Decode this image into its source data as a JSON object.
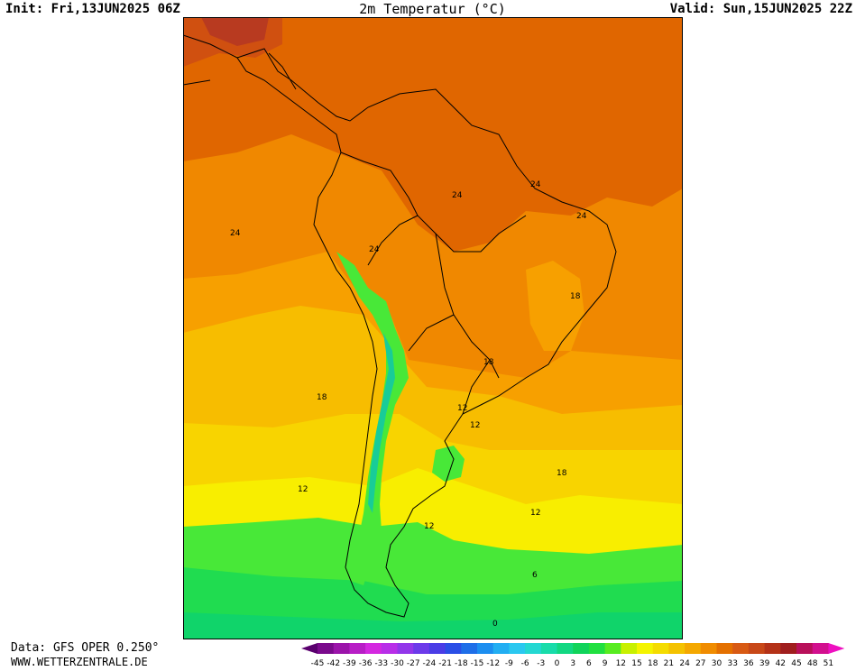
{
  "header": {
    "init": "Init: Fri,13JUN2025 06Z",
    "title": "2m Temperatur (°C)",
    "valid": "Valid: Sun,15JUN2025 22Z"
  },
  "footer": {
    "data_source": "Data: GFS OPER 0.250°",
    "website": "WWW.WETTERZENTRALE.DE"
  },
  "contour_labels": [
    "24",
    "24",
    "24",
    "24",
    "24",
    "18",
    "18",
    "18",
    "18",
    "12",
    "12",
    "12",
    "12",
    "12",
    "6",
    "0"
  ],
  "colorbar": {
    "ticks": [
      "-45",
      "-42",
      "-39",
      "-36",
      "-33",
      "-30",
      "-27",
      "-24",
      "-21",
      "-18",
      "-15",
      "-12",
      "-9",
      "-6",
      "-3",
      "0",
      "3",
      "6",
      "9",
      "12",
      "15",
      "18",
      "21",
      "24",
      "27",
      "30",
      "33",
      "36",
      "39",
      "42",
      "45",
      "48",
      "51"
    ],
    "colors": [
      "#5a006e",
      "#7a0a8c",
      "#9b14aa",
      "#b81ec6",
      "#d428e0",
      "#b82ee8",
      "#9236ea",
      "#6c3aea",
      "#4a3ce6",
      "#2a4ee6",
      "#1e6ee8",
      "#1c8ef0",
      "#22aef2",
      "#2ac8f0",
      "#24d8d2",
      "#18dcaa",
      "#12d882",
      "#10d45a",
      "#20e040",
      "#58ec20",
      "#c8f000",
      "#f4f400",
      "#f4dc00",
      "#f4c200",
      "#f4a800",
      "#f08c00",
      "#e47000",
      "#d85a14",
      "#c84818",
      "#b43218",
      "#a01e1e",
      "#b8105a",
      "#d2108e",
      "#ee10c0"
    ]
  },
  "map_colors": {
    "t27": "#e06600",
    "t24": "#f08800",
    "t21": "#f7a000",
    "t18": "#f7bd00",
    "t15": "#f8d400",
    "t12": "#f8ee00",
    "t9": "#c8f000",
    "t6": "#48e838",
    "t3": "#20dc50",
    "t0": "#10d46a",
    "tm3": "#18cc98",
    "hot": "#d05010",
    "vhot": "#b83a20",
    "border": "#000000",
    "isoline": "#a0a0a0"
  }
}
